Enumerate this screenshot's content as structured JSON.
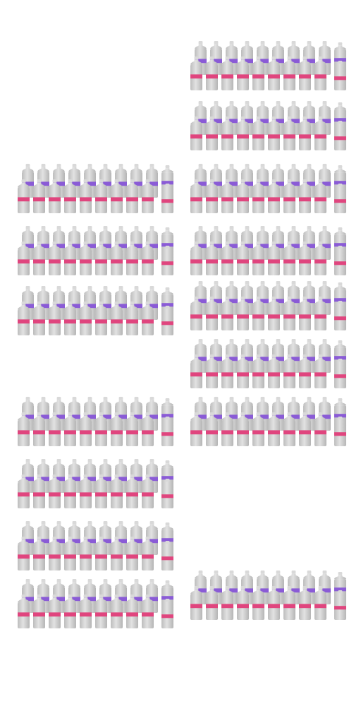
{
  "scene": {
    "background": "#ffffff",
    "bottle_body_color": "#cfcfcf",
    "bottle_shade_color": "#b9b9b9",
    "cap_color": "#d9d9d9",
    "back_label_color": "#8a5bd6",
    "front_label_color": "#e0457e",
    "bottles_per_row_main": 9,
    "bottles_per_row_side": 1,
    "left_column_blocks": 7,
    "right_column_blocks": 8
  }
}
